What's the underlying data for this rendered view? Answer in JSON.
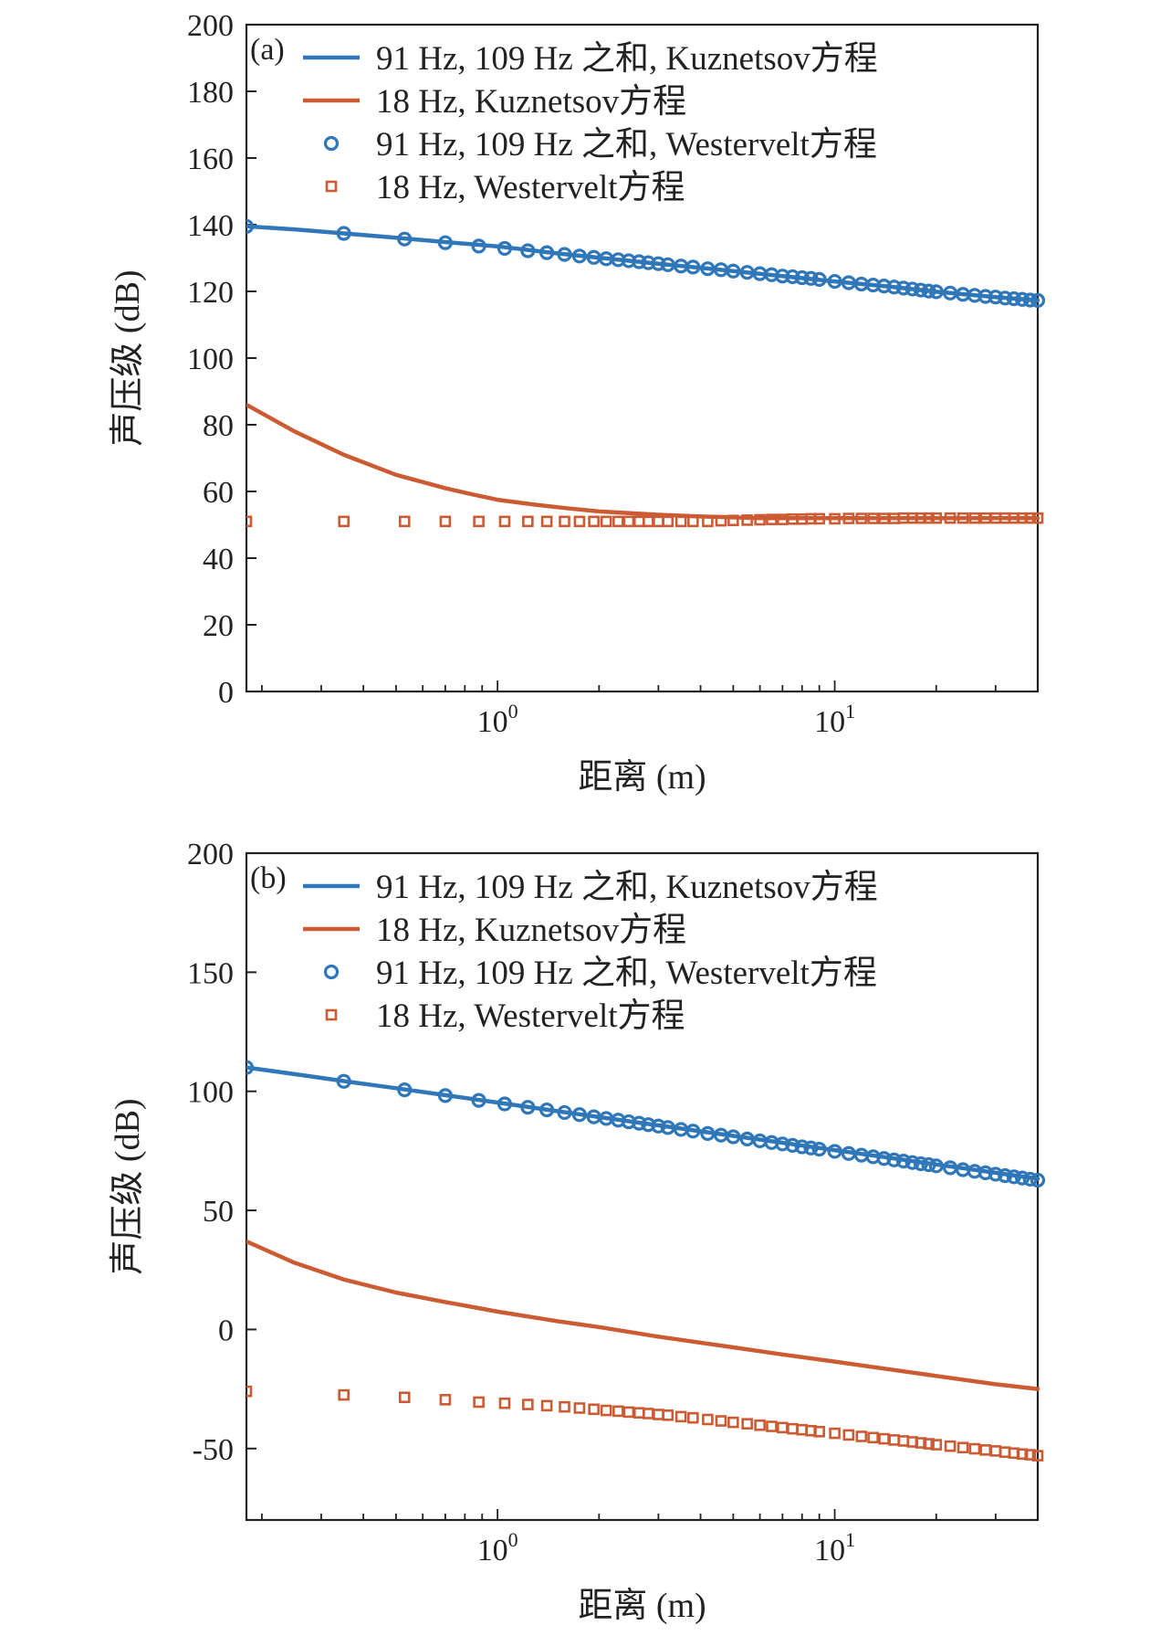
{
  "chart_data": [
    {
      "type": "line",
      "panel_label": "(a)",
      "xlabel": "距离 (m)",
      "ylabel": "声压级 (dB)",
      "xscale": "log",
      "xlim": [
        0.18,
        40
      ],
      "ylim": [
        0,
        200
      ],
      "yticks": [
        0,
        20,
        40,
        60,
        80,
        100,
        120,
        140,
        160,
        180,
        200
      ],
      "xticks": [
        {
          "value": 1,
          "base": "10",
          "exp": "0"
        },
        {
          "value": 10,
          "base": "10",
          "exp": "1"
        }
      ],
      "legend_position": "top-left",
      "grid": false,
      "series": [
        {
          "name": "91 Hz, 109 Hz 之和, Kuznetsov方程",
          "style": "line",
          "color": "#2f77b8",
          "x": [
            0.18,
            0.25,
            0.35,
            0.5,
            0.7,
            1,
            1.5,
            2,
            3,
            5,
            7,
            10,
            15,
            20,
            30,
            40
          ],
          "y": [
            139.5,
            138.6,
            137.4,
            136.1,
            134.8,
            133.5,
            131.4,
            130.1,
            128.3,
            126.1,
            124.6,
            123.0,
            121.3,
            119.9,
            118.3,
            117.3
          ]
        },
        {
          "name": "18 Hz, Kuznetsov方程",
          "style": "line",
          "color": "#cc5b33",
          "x": [
            0.18,
            0.25,
            0.35,
            0.5,
            0.7,
            0.85,
            1,
            1.3,
            1.6,
            2,
            3,
            4,
            6,
            10,
            20,
            40
          ],
          "y": [
            86,
            78,
            71,
            65,
            61,
            59,
            57.5,
            56,
            55,
            54,
            53,
            52.5,
            52,
            52,
            52,
            52
          ]
        },
        {
          "name": "91 Hz, 109 Hz 之和, Westervelt方程",
          "style": "circle-marker",
          "color": "#2f77b8",
          "x": [
            0.18,
            0.35,
            0.53,
            0.7,
            0.88,
            1.05,
            1.23,
            1.4,
            1.58,
            1.75,
            1.93,
            2.1,
            2.28,
            2.45,
            2.63,
            2.8,
            3.0,
            3.2,
            3.5,
            3.8,
            4.2,
            4.6,
            5,
            5.5,
            6,
            6.5,
            7,
            7.5,
            8,
            8.5,
            9,
            10,
            11,
            12,
            13,
            14,
            15,
            16,
            17,
            18,
            19,
            20,
            22,
            24,
            26,
            28,
            30,
            32,
            34,
            36,
            38,
            40
          ],
          "y": [
            139.5,
            137.4,
            135.7,
            134.6,
            133.6,
            132.9,
            132.2,
            131.6,
            131.1,
            130.6,
            130.2,
            129.8,
            129.5,
            129.2,
            128.9,
            128.6,
            128.3,
            128.0,
            127.6,
            127.3,
            126.8,
            126.5,
            126.1,
            125.7,
            125.3,
            125.0,
            124.6,
            124.4,
            124.1,
            123.9,
            123.6,
            123.0,
            122.6,
            122.2,
            121.9,
            121.6,
            121.3,
            121.0,
            120.7,
            120.4,
            120.1,
            119.9,
            119.5,
            119.1,
            118.8,
            118.5,
            118.3,
            118.0,
            117.8,
            117.6,
            117.4,
            117.3
          ]
        },
        {
          "name": "18 Hz, Westervelt方程",
          "style": "square-marker",
          "color": "#cc5b33",
          "x": [
            0.18,
            0.35,
            0.53,
            0.7,
            0.88,
            1.05,
            1.23,
            1.4,
            1.58,
            1.75,
            1.93,
            2.1,
            2.28,
            2.45,
            2.63,
            2.8,
            3.0,
            3.2,
            3.5,
            3.8,
            4.2,
            4.6,
            5,
            5.5,
            6,
            6.5,
            7,
            7.5,
            8,
            8.5,
            9,
            10,
            11,
            12,
            13,
            14,
            15,
            16,
            17,
            18,
            19,
            20,
            22,
            24,
            26,
            28,
            30,
            32,
            34,
            36,
            38,
            40
          ],
          "y": [
            51,
            51,
            51,
            51,
            51,
            51,
            51,
            51,
            51,
            51,
            51,
            51,
            51,
            51,
            51,
            51,
            51,
            51,
            51,
            51,
            51,
            51.2,
            51.3,
            51.4,
            51.5,
            51.6,
            51.6,
            51.7,
            51.7,
            51.8,
            51.8,
            51.8,
            51.9,
            51.9,
            51.9,
            51.9,
            51.9,
            52,
            52,
            52,
            52,
            52,
            52,
            52,
            52,
            52,
            52,
            52,
            52,
            52,
            52,
            52
          ]
        }
      ]
    },
    {
      "type": "line",
      "panel_label": "(b)",
      "xlabel": "距离 (m)",
      "ylabel": "声压级 (dB)",
      "xscale": "log",
      "xlim": [
        0.18,
        40
      ],
      "ylim": [
        -80,
        200
      ],
      "yticks": [
        -50,
        0,
        50,
        100,
        150,
        200
      ],
      "xticks": [
        {
          "value": 1,
          "base": "10",
          "exp": "0"
        },
        {
          "value": 10,
          "base": "10",
          "exp": "1"
        }
      ],
      "legend_position": "top-left",
      "grid": false,
      "series": [
        {
          "name": "91 Hz, 109 Hz 之和, Kuznetsov方程",
          "style": "line",
          "color": "#2f77b8",
          "x": [
            0.18,
            0.25,
            0.35,
            0.5,
            0.7,
            1,
            1.5,
            2,
            3,
            5,
            7,
            10,
            15,
            20,
            30,
            40
          ],
          "y": [
            110,
            107.2,
            104.3,
            101.3,
            98.4,
            95.3,
            91.7,
            89.2,
            85.7,
            81.3,
            78.4,
            75.3,
            71.8,
            69.3,
            65.8,
            63.3
          ]
        },
        {
          "name": "18 Hz, Kuznetsov方程",
          "style": "line",
          "color": "#cc5b33",
          "x": [
            0.18,
            0.25,
            0.35,
            0.5,
            0.7,
            1,
            1.5,
            2,
            3,
            5,
            7,
            10,
            15,
            20,
            30,
            40
          ],
          "y": [
            37,
            28,
            21,
            15.5,
            11.5,
            7.5,
            3.5,
            1,
            -3,
            -7.5,
            -10.5,
            -13.5,
            -17,
            -19.5,
            -23,
            -25
          ]
        },
        {
          "name": "91 Hz, 109 Hz 之和, Westervelt方程",
          "style": "circle-marker",
          "color": "#2f77b8",
          "x": [
            0.18,
            0.35,
            0.53,
            0.7,
            0.88,
            1.05,
            1.23,
            1.4,
            1.58,
            1.75,
            1.93,
            2.1,
            2.28,
            2.45,
            2.63,
            2.8,
            3.0,
            3.2,
            3.5,
            3.8,
            4.2,
            4.6,
            5,
            5.5,
            6,
            6.5,
            7,
            7.5,
            8,
            8.5,
            9,
            10,
            11,
            12,
            13,
            14,
            15,
            16,
            17,
            18,
            19,
            20,
            22,
            24,
            26,
            28,
            30,
            32,
            34,
            36,
            38,
            40
          ],
          "y": [
            110,
            104.2,
            100.6,
            98.2,
            96.2,
            94.7,
            93.3,
            92.2,
            91.1,
            90.2,
            89.3,
            88.6,
            87.9,
            87.2,
            86.6,
            86.0,
            85.4,
            84.8,
            84.0,
            83.3,
            82.3,
            81.6,
            80.9,
            80.0,
            79.2,
            78.5,
            77.9,
            77.3,
            76.7,
            76.2,
            75.7,
            74.8,
            73.9,
            73.2,
            72.5,
            71.8,
            71.2,
            70.7,
            70.1,
            69.6,
            69.2,
            68.7,
            67.9,
            67.1,
            66.4,
            65.8,
            65.2,
            64.6,
            64.1,
            63.6,
            63.1,
            62.7
          ]
        },
        {
          "name": "18 Hz, Westervelt方程",
          "style": "square-marker",
          "color": "#cc5b33",
          "x": [
            0.18,
            0.35,
            0.53,
            0.7,
            0.88,
            1.05,
            1.23,
            1.4,
            1.58,
            1.75,
            1.93,
            2.1,
            2.28,
            2.45,
            2.63,
            2.8,
            3.0,
            3.2,
            3.5,
            3.8,
            4.2,
            4.6,
            5,
            5.5,
            6,
            6.5,
            7,
            7.5,
            8,
            8.5,
            9,
            10,
            11,
            12,
            13,
            14,
            15,
            16,
            17,
            18,
            19,
            20,
            22,
            24,
            26,
            28,
            30,
            32,
            34,
            36,
            38,
            40
          ],
          "y": [
            -26,
            -27.5,
            -28.5,
            -29.5,
            -30.5,
            -31,
            -31.5,
            -32,
            -32.5,
            -33,
            -33.5,
            -34,
            -34.3,
            -34.7,
            -35,
            -35.3,
            -35.7,
            -36,
            -36.6,
            -37.1,
            -37.8,
            -38.4,
            -39,
            -39.6,
            -40.2,
            -40.7,
            -41.2,
            -41.7,
            -42.1,
            -42.5,
            -42.9,
            -43.6,
            -44.3,
            -44.9,
            -45.4,
            -45.9,
            -46.4,
            -46.8,
            -47.2,
            -47.6,
            -48.0,
            -48.4,
            -49.0,
            -49.6,
            -50.1,
            -50.6,
            -51.0,
            -51.5,
            -51.9,
            -52.3,
            -52.6,
            -53.0
          ]
        }
      ]
    }
  ]
}
